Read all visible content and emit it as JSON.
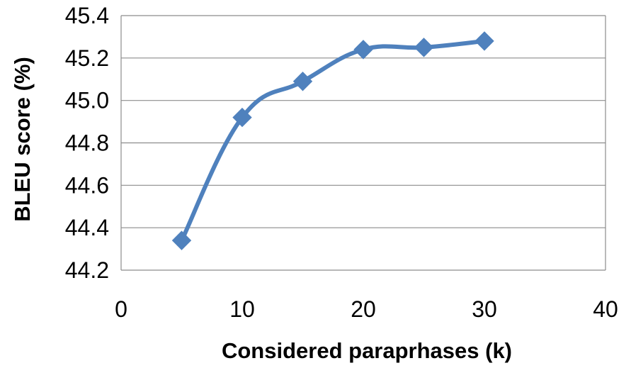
{
  "chart_data": {
    "type": "line",
    "title": "",
    "xlabel": "Considered paraprhases (k)",
    "ylabel": "BLEU score (%)",
    "xlim": [
      0,
      40
    ],
    "ylim": [
      44.2,
      45.4
    ],
    "xticks": [
      "0",
      "10",
      "20",
      "30",
      "40"
    ],
    "yticks": [
      "44.2",
      "44.4",
      "44.6",
      "44.8",
      "45.0",
      "45.2",
      "45.4"
    ],
    "grid": true,
    "legend": "none",
    "series": [
      {
        "color": "#4f81bd",
        "marker": "diamond",
        "smooth": true,
        "x": [
          5,
          10,
          15,
          20,
          25,
          30
        ],
        "y": [
          44.34,
          44.92,
          45.09,
          45.24,
          45.25,
          45.28
        ]
      }
    ]
  }
}
